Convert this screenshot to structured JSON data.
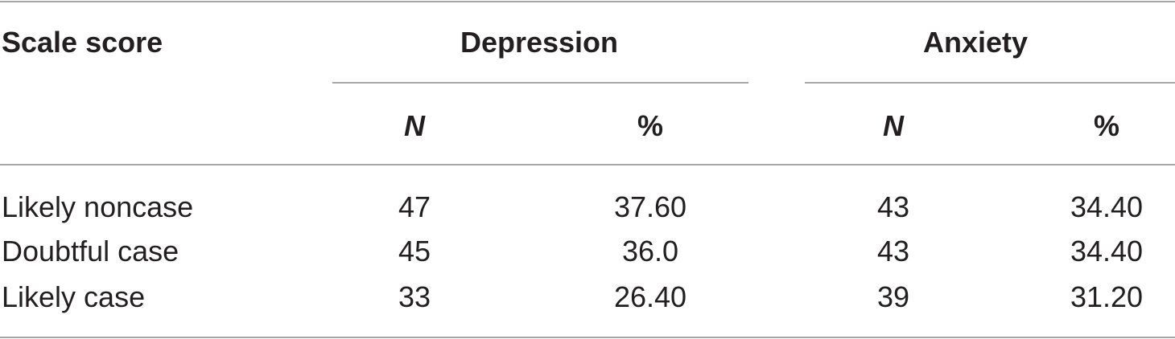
{
  "table": {
    "header": {
      "row_label": "Scale score",
      "groups": [
        "Depression",
        "Anxiety"
      ],
      "subheaders": [
        "N",
        "%",
        "N",
        "%"
      ]
    },
    "rows": [
      [
        "Likely noncase",
        "47",
        "37.60",
        "43",
        "34.40"
      ],
      [
        "Doubtful case",
        "45",
        "36.0",
        "43",
        "34.40"
      ],
      [
        "Likely case",
        "33",
        "26.40",
        "39",
        "31.20"
      ]
    ]
  }
}
